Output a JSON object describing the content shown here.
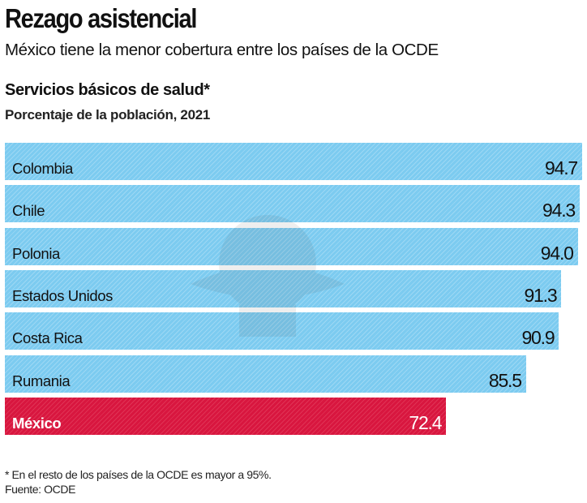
{
  "header": {
    "title": "Rezago asistencial",
    "subtitle": "México tiene la menor cobertura entre los países de la OCDE"
  },
  "chart_data": {
    "type": "bar",
    "orientation": "horizontal",
    "title": "Servicios básicos de salud*",
    "subtitle": "Porcentaje de la población, 2021",
    "categories": [
      "Colombia",
      "Chile",
      "Polonia",
      "Estados Unidos",
      "Costa Rica",
      "Rumania",
      "México"
    ],
    "values": [
      94.7,
      94.3,
      94.0,
      91.3,
      90.9,
      85.5,
      72.4
    ],
    "value_labels": [
      "94.7",
      "94.3",
      "94.0",
      "91.3",
      "90.9",
      "85.5",
      "72.4"
    ],
    "highlight": "México",
    "colors": {
      "default": "#7ccbf0",
      "highlight": "#d8163f",
      "stripe": "#9dd8f4",
      "highlight_stripe": "#e03355"
    },
    "grid": false,
    "legend": "none"
  },
  "footer": {
    "note": "* En el resto de los países de la OCDE es mayor a 95%.",
    "source": "Fuente: OCDE"
  }
}
